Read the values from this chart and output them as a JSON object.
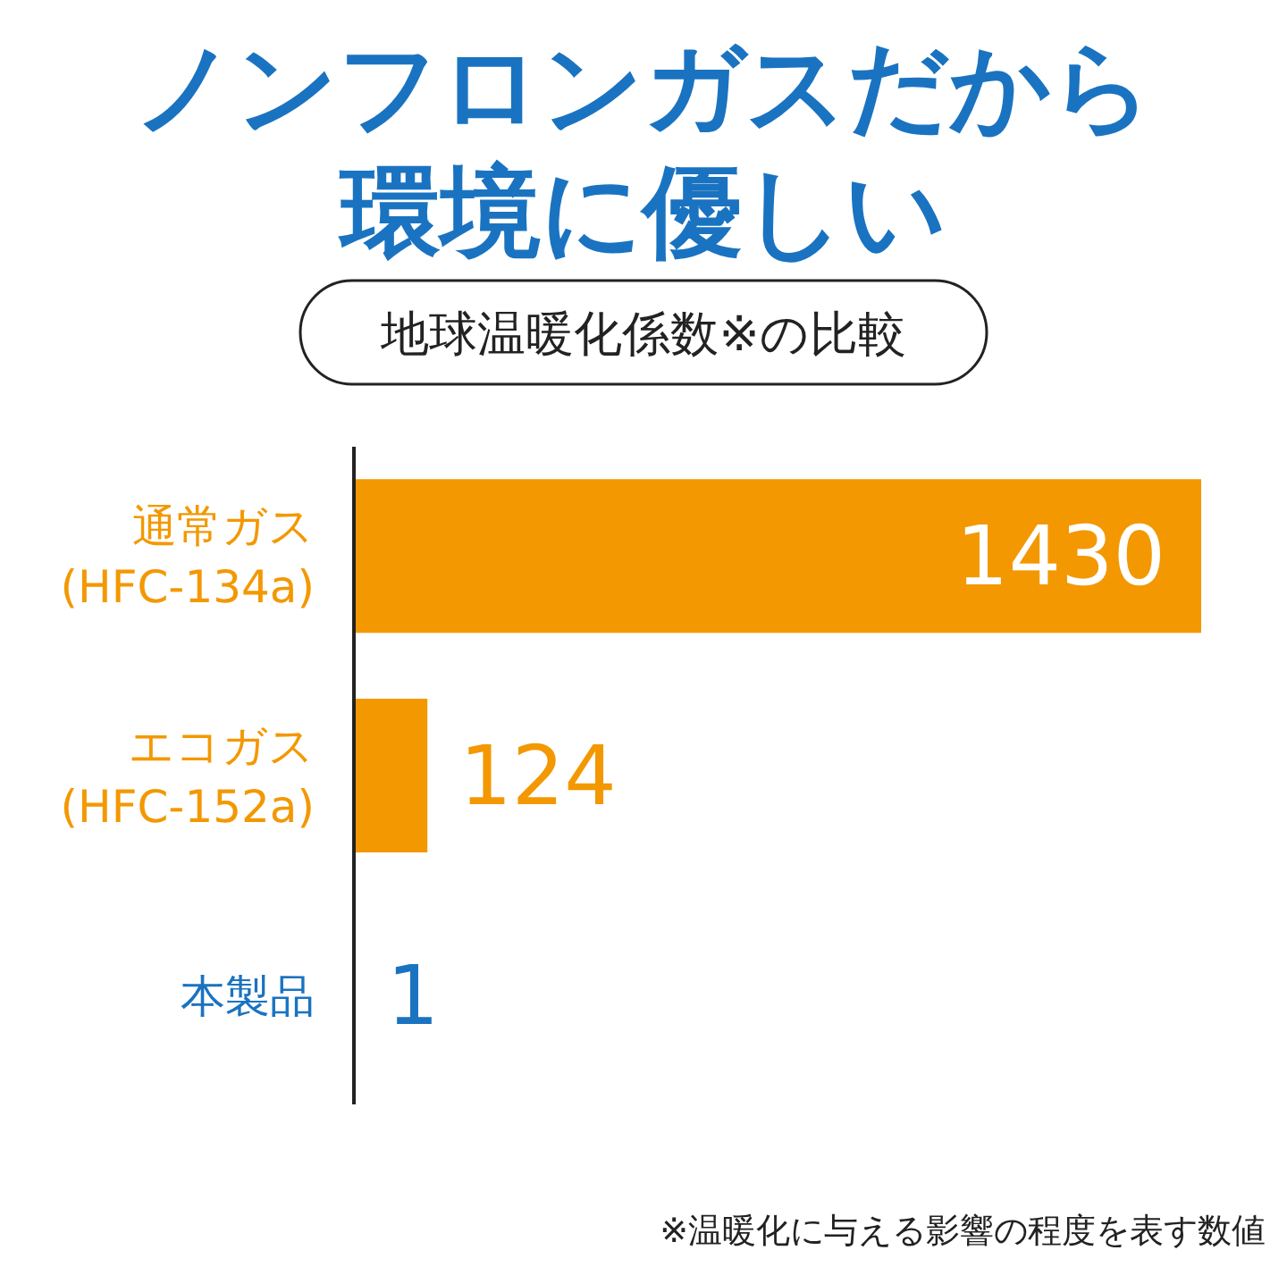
{
  "chart_data": {
    "type": "bar",
    "orientation": "horizontal",
    "title": "ノンフロンガスだから環境に優しい",
    "subtitle": "地球温暖化係数※の比較",
    "categories": [
      "通常ガス\n(HFC-134a)",
      "エコガス\n(HFC-152a)",
      "本製品"
    ],
    "values": [
      1430,
      124,
      1
    ],
    "colors": [
      "#f39800",
      "#f39800",
      "#1a73c1"
    ],
    "xlim": [
      0,
      1430
    ],
    "data_labels": true,
    "tick_labels": "y",
    "annotations": [
      "※温暖化に与える影響の程度を表す数値"
    ]
  }
}
